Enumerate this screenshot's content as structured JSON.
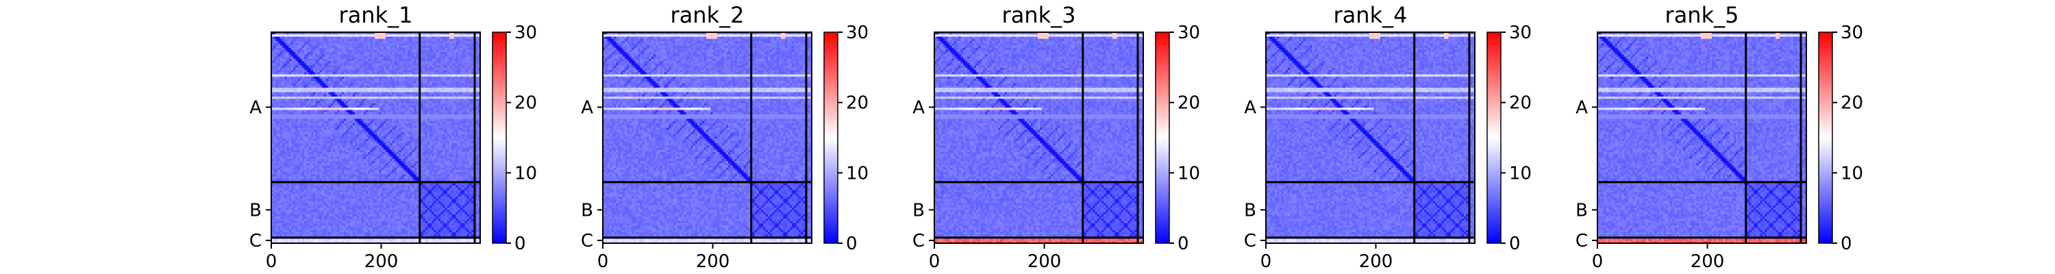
{
  "chart_data": {
    "type": "heatmap",
    "colormap": {
      "name": "bwr",
      "low": "#0000ff",
      "mid": "#ffffff",
      "high": "#ff0000"
    },
    "colorbar": {
      "range": [
        0,
        30
      ],
      "ticks": [
        "0",
        "10",
        "20",
        "30"
      ]
    },
    "x_axis": {
      "range": [
        0,
        380
      ],
      "ticks": [
        "0",
        "200"
      ]
    },
    "chain_boundaries": [
      270,
      370
    ],
    "chain_labels": [
      "A",
      "B",
      "C"
    ],
    "panels": [
      {
        "title": "rank_1",
        "variant": 0
      },
      {
        "title": "rank_2",
        "variant": 1
      },
      {
        "title": "rank_3",
        "variant": 2
      },
      {
        "title": "rank_4",
        "variant": 3
      },
      {
        "title": "rank_5",
        "variant": 4
      }
    ]
  }
}
